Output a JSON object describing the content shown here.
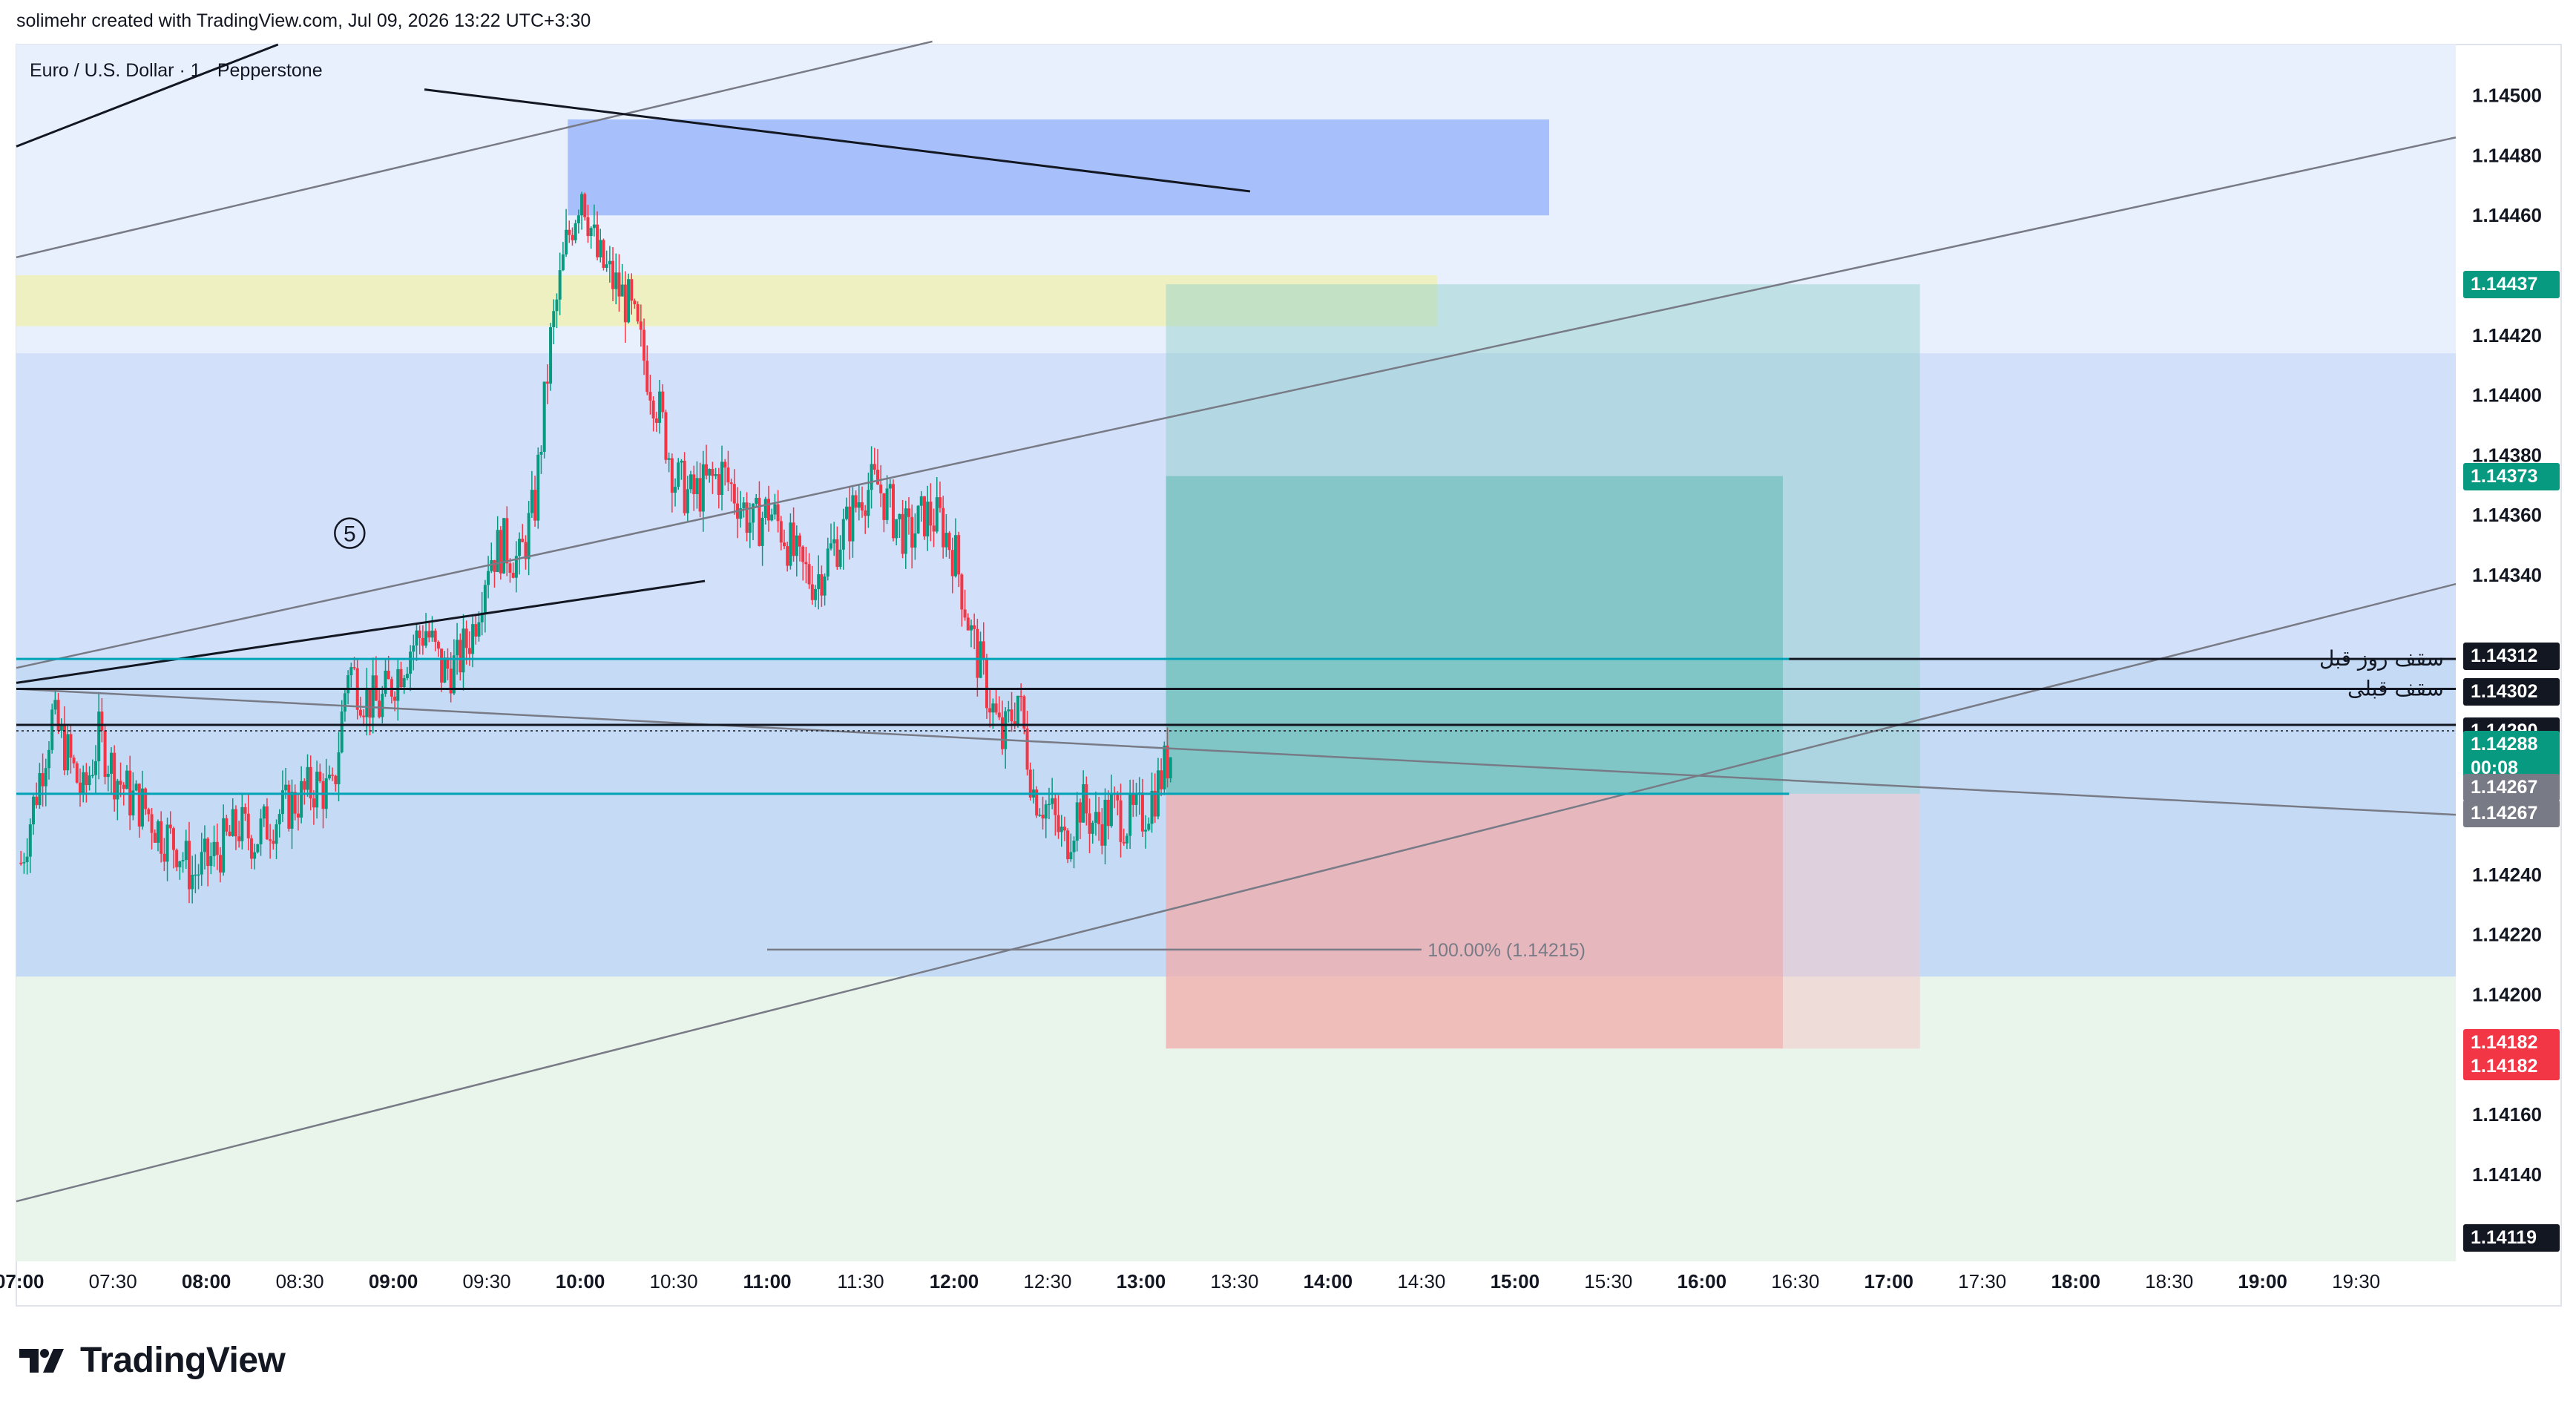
{
  "header": {
    "publisher_line": "solimehr created with TradingView.com, Jul 09, 2026 13:22 UTC+3:30"
  },
  "brand": {
    "name": "TradingView",
    "icon": "tradingview-logo-icon"
  },
  "colors": {
    "bull": "#089981",
    "bear": "#f23645",
    "teal_badge": "#089981",
    "red_badge": "#f23645",
    "dark_badge": "#131722",
    "grey_badge": "#787b86"
  },
  "chart_data": {
    "type": "candlestick",
    "symbol_label": "Euro / U.S. Dollar · 1 · Pepperstone",
    "x_tick_labels": [
      "07:00",
      "07:30",
      "08:00",
      "08:30",
      "09:00",
      "09:30",
      "10:00",
      "10:30",
      "11:00",
      "11:30",
      "12:00",
      "12:30",
      "13:00",
      "13:30",
      "14:00",
      "14:30",
      "15:00",
      "15:30",
      "16:00",
      "16:30",
      "17:00",
      "17:30",
      "18:00",
      "18:30",
      "19:00",
      "19:30"
    ],
    "y_tick_labels": [
      "1.14500",
      "1.14480",
      "1.14460",
      "1.14420",
      "1.14400",
      "1.14380",
      "1.14360",
      "1.14340",
      "1.14240",
      "1.14220",
      "1.14200",
      "1.14160",
      "1.14140"
    ],
    "ylim": [
      1.14111,
      1.14517
    ],
    "xlim_time": [
      "06:59",
      "20:02"
    ],
    "price_path": [
      [
        "07:00",
        1.14244
      ],
      [
        "07:05",
        1.14268
      ],
      [
        "07:10",
        1.14292
      ],
      [
        "07:15",
        1.1428
      ],
      [
        "07:20",
        1.14266
      ],
      [
        "07:25",
        1.14286
      ],
      [
        "07:30",
        1.14274
      ],
      [
        "07:35",
        1.14266
      ],
      [
        "07:40",
        1.14262
      ],
      [
        "07:45",
        1.14254
      ],
      [
        "07:50",
        1.1425
      ],
      [
        "07:55",
        1.1424
      ],
      [
        "08:00",
        1.14244
      ],
      [
        "08:05",
        1.1425
      ],
      [
        "08:10",
        1.14256
      ],
      [
        "08:15",
        1.14252
      ],
      [
        "08:20",
        1.14258
      ],
      [
        "08:25",
        1.14262
      ],
      [
        "08:30",
        1.14266
      ],
      [
        "08:35",
        1.1427
      ],
      [
        "08:40",
        1.14266
      ],
      [
        "08:45",
        1.1431
      ],
      [
        "08:50",
        1.143
      ],
      [
        "08:55",
        1.14296
      ],
      [
        "09:00",
        1.14306
      ],
      [
        "09:05",
        1.14316
      ],
      [
        "09:10",
        1.14322
      ],
      [
        "09:15",
        1.14308
      ],
      [
        "09:20",
        1.1431
      ],
      [
        "09:25",
        1.14322
      ],
      [
        "09:30",
        1.14346
      ],
      [
        "09:35",
        1.1435
      ],
      [
        "09:40",
        1.14344
      ],
      [
        "09:45",
        1.14364
      ],
      [
        "09:50",
        1.14418
      ],
      [
        "09:55",
        1.1445
      ],
      [
        "10:00",
        1.1447
      ],
      [
        "10:05",
        1.14446
      ],
      [
        "10:10",
        1.14438
      ],
      [
        "10:15",
        1.1443
      ],
      [
        "10:20",
        1.14412
      ],
      [
        "10:25",
        1.14394
      ],
      [
        "10:30",
        1.14372
      ],
      [
        "10:35",
        1.14366
      ],
      [
        "10:40",
        1.1437
      ],
      [
        "10:45",
        1.14374
      ],
      [
        "10:50",
        1.14366
      ],
      [
        "10:55",
        1.14356
      ],
      [
        "11:00",
        1.14362
      ],
      [
        "11:05",
        1.14354
      ],
      [
        "11:10",
        1.14342
      ],
      [
        "11:15",
        1.14338
      ],
      [
        "11:20",
        1.14348
      ],
      [
        "11:25",
        1.14356
      ],
      [
        "11:30",
        1.14368
      ],
      [
        "11:35",
        1.1437
      ],
      [
        "11:40",
        1.1436
      ],
      [
        "11:45",
        1.14352
      ],
      [
        "11:50",
        1.1436
      ],
      [
        "11:55",
        1.14358
      ],
      [
        "12:00",
        1.14346
      ],
      [
        "12:05",
        1.1432
      ],
      [
        "12:10",
        1.14302
      ],
      [
        "12:15",
        1.14284
      ],
      [
        "12:20",
        1.143
      ],
      [
        "12:25",
        1.14268
      ],
      [
        "12:30",
        1.14262
      ],
      [
        "12:35",
        1.1425
      ],
      [
        "12:40",
        1.14264
      ],
      [
        "12:45",
        1.14256
      ],
      [
        "12:50",
        1.14262
      ],
      [
        "12:55",
        1.14258
      ],
      [
        "13:00",
        1.1426
      ],
      [
        "13:05",
        1.1427
      ],
      [
        "13:10",
        1.14284
      ]
    ],
    "annotations": [
      {
        "type": "elliott-wave-label",
        "text": "5",
        "time": "08:46",
        "price": 1.14348
      },
      {
        "type": "fib-label",
        "text": "100.00% (1.14215)",
        "price": 1.14215
      }
    ],
    "horizontal_lines": [
      {
        "price": 1.14312,
        "color": "#00a3b5",
        "label": "سقف روز قبل"
      },
      {
        "price": 1.14302,
        "color": "#131722",
        "label": "سقف قبلی"
      },
      {
        "price": 1.1429,
        "color": "#131722",
        "label": ""
      },
      {
        "price": 1.14267,
        "color": "#00a3b5",
        "label": ""
      }
    ],
    "position": {
      "type": "long",
      "entry": 1.14267,
      "take_profit_1": 1.14373,
      "take_profit_2": 1.14437,
      "stop": 1.14182
    },
    "price_badges": [
      {
        "text": "1.14437",
        "kind": "teal"
      },
      {
        "text": "1.14373",
        "kind": "teal"
      },
      {
        "text": "1.14312",
        "kind": "dark"
      },
      {
        "text": "1.14302",
        "kind": "dark"
      },
      {
        "text": "1.14290",
        "kind": "dark"
      },
      {
        "text": "1.14288",
        "kind": "teal"
      },
      {
        "text": "00:08",
        "kind": "teal"
      },
      {
        "text": "1.14267",
        "kind": "grey"
      },
      {
        "text": "1.14267",
        "kind": "grey"
      },
      {
        "text": "1.14182",
        "kind": "red"
      },
      {
        "text": "1.14182",
        "kind": "red"
      },
      {
        "text": "1.14119",
        "kind": "dark"
      }
    ]
  }
}
